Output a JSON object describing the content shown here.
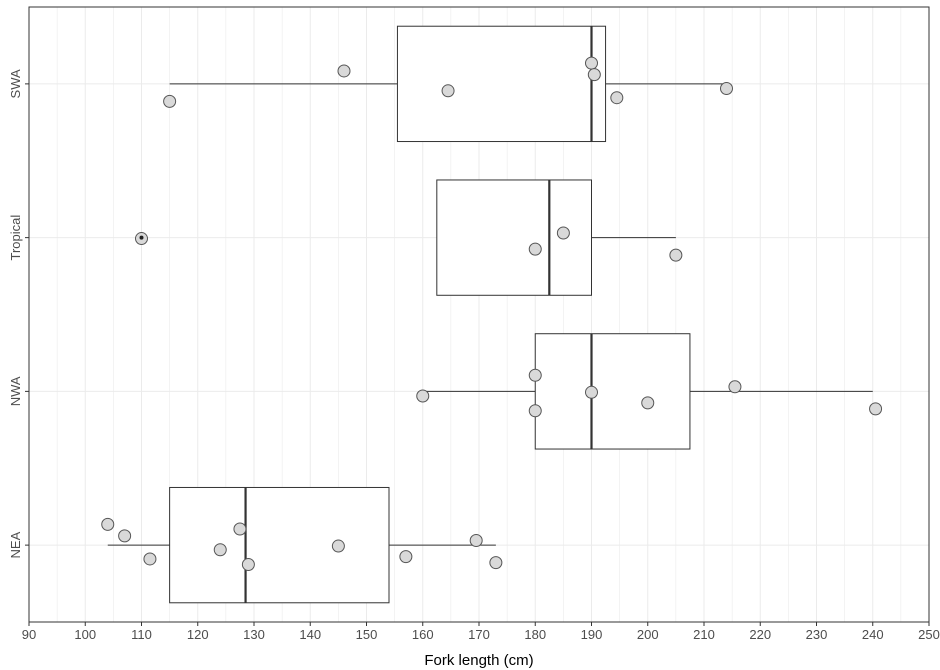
{
  "chart_data": {
    "type": "boxplot",
    "title": "",
    "xlabel": "Fork length (cm)",
    "ylabel": "",
    "xlim": [
      90,
      250
    ],
    "x_ticks": [
      90,
      100,
      110,
      120,
      130,
      140,
      150,
      160,
      170,
      180,
      190,
      200,
      210,
      220,
      230,
      240,
      250
    ],
    "orientation": "horizontal",
    "grid": true,
    "legend": "none",
    "colors": {
      "box_fill": "#ffffff",
      "box_stroke": "#333333",
      "point_fill": "#d9d9d9",
      "point_stroke": "#555555",
      "grid": "#ebebeb",
      "outlier": "#222222"
    },
    "categories": [
      "NEA",
      "NWA",
      "Tropical",
      "SWA"
    ],
    "boxes": [
      {
        "group": "NEA",
        "min": 104,
        "q1": 115,
        "median": 128.5,
        "q3": 154,
        "max": 173,
        "outliers": []
      },
      {
        "group": "NWA",
        "min": 160,
        "q1": 180,
        "median": 190,
        "q3": 207.5,
        "max": 240,
        "outliers": []
      },
      {
        "group": "Tropical",
        "min": 162.5,
        "q1": 162.5,
        "median": 182.5,
        "q3": 190,
        "max": 205,
        "outliers": [
          110
        ]
      },
      {
        "group": "SWA",
        "min": 115,
        "q1": 155.5,
        "median": 190,
        "q3": 192.5,
        "max": 214,
        "outliers": []
      }
    ],
    "points": [
      {
        "group": "NEA",
        "values": [
          104,
          107,
          111.5,
          124,
          127.5,
          129,
          145,
          157,
          169.5,
          173
        ]
      },
      {
        "group": "NWA",
        "values": [
          160,
          180,
          180,
          190,
          200,
          215.5,
          240.5
        ]
      },
      {
        "group": "Tropical",
        "values": [
          110,
          180,
          185,
          205
        ]
      },
      {
        "group": "SWA",
        "values": [
          115,
          146,
          164.5,
          190,
          190.5,
          194.5,
          214
        ]
      }
    ]
  }
}
